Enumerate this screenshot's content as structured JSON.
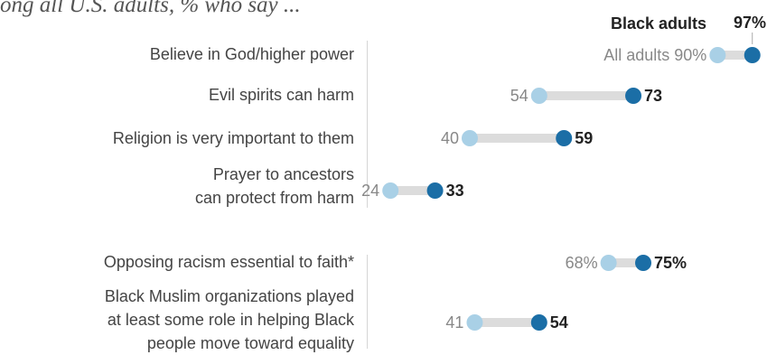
{
  "subtitle": "ong all U.S. adults, % who say ...",
  "legend": {
    "black": "Black adults",
    "all": "All adults"
  },
  "colors": {
    "all_adults": "#a9d0e6",
    "black_adults": "#1b6ea6",
    "connector": "#dcdcdc"
  },
  "chart_data": {
    "type": "dot",
    "series": [
      {
        "name": "All adults",
        "values": [
          90,
          54,
          40,
          24,
          68,
          41
        ]
      },
      {
        "name": "Black adults",
        "values": [
          97,
          73,
          59,
          33,
          75,
          54
        ]
      }
    ],
    "categories": [
      "Believe in God/higher power",
      "Evil spirits can harm",
      "Religion is very important to them",
      "Prayer to ancestors can protect from harm",
      "Opposing racism essential to faith*",
      "Black Muslim organizations played at least some role in helping Black people move toward equality"
    ],
    "category_lines": [
      [
        "Believe in God/higher power"
      ],
      [
        "Evil spirits can harm"
      ],
      [
        "Religion is very important to them"
      ],
      [
        "Prayer to ancestors",
        "can protect from harm"
      ],
      [
        "Opposing racism essential to faith*"
      ],
      [
        "Black Muslim organizations played",
        "at least some role in helping Black",
        "people move toward equality"
      ]
    ],
    "all_labels": [
      "All adults 90%",
      "54",
      "40",
      "24",
      "68%",
      "41"
    ],
    "black_labels": [
      "97%",
      "73",
      "59",
      "33",
      "75%",
      "54"
    ]
  }
}
